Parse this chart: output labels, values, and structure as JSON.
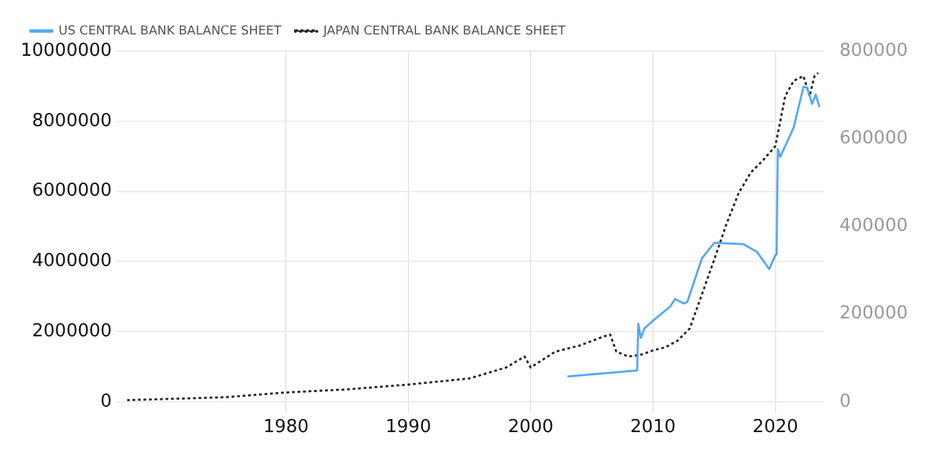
{
  "chart_data": {
    "type": "line",
    "legend": "top left",
    "grid": true,
    "marker": "none",
    "xlim": [
      1967,
      2024
    ],
    "xticks": [
      1980,
      1990,
      2000,
      2010,
      2020
    ],
    "ylim": [
      0,
      10000000
    ],
    "yticks": [
      0,
      2000000,
      4000000,
      6000000,
      8000000,
      10000000
    ],
    "y2lim": [
      0,
      800000
    ],
    "y2ticks": [
      0,
      200000,
      400000,
      600000,
      800000
    ],
    "series": [
      {
        "name": "US CENTRAL BANK BALANCE SHEET",
        "color": "#55a8f5",
        "line_style": "solid",
        "x": [
          2003,
          2008.7,
          2008.8,
          2009,
          2009.3,
          2010,
          2011.4,
          2011.8,
          2012.5,
          2012.8,
          2014,
          2015,
          2017.4,
          2018.5,
          2019.5,
          2020,
          2020.1,
          2020.2,
          2020.4,
          2021.5,
          2022.3,
          2022.6,
          2023,
          2023.3,
          2023.6
        ],
        "values": [
          720000,
          890000,
          2220000,
          1820000,
          2090000,
          2310000,
          2710000,
          2930000,
          2800000,
          2840000,
          4090000,
          4530000,
          4490000,
          4270000,
          3780000,
          4180000,
          4200000,
          7200000,
          6980000,
          7820000,
          8980000,
          8960000,
          8490000,
          8760000,
          8400000
        ]
      },
      {
        "name": "JAPAN CENTRAL BANK BALANCE SHEET",
        "color": "#222222",
        "line_style": "dotted",
        "axis": "y2",
        "x": [
          1967,
          1975,
          1980,
          1985,
          1990,
          1995,
          1998,
          1999.5,
          2000,
          2002,
          2004,
          2006,
          2006.5,
          2007,
          2008,
          2009,
          2010,
          2011,
          2012,
          2013,
          2014,
          2015,
          2016,
          2017,
          2018,
          2019,
          2020,
          2020.8,
          2021.5,
          2022.3,
          2022.8,
          2023.2,
          2023.5
        ],
        "values": [
          3500,
          10000,
          21000,
          28000,
          39000,
          53000,
          78000,
          103000,
          78000,
          114000,
          128000,
          149000,
          153000,
          114000,
          103000,
          107000,
          117000,
          124000,
          139000,
          167000,
          245000,
          324000,
          405000,
          476000,
          523000,
          551000,
          583000,
          697000,
          732000,
          743000,
          697000,
          743000,
          750000
        ]
      }
    ]
  }
}
